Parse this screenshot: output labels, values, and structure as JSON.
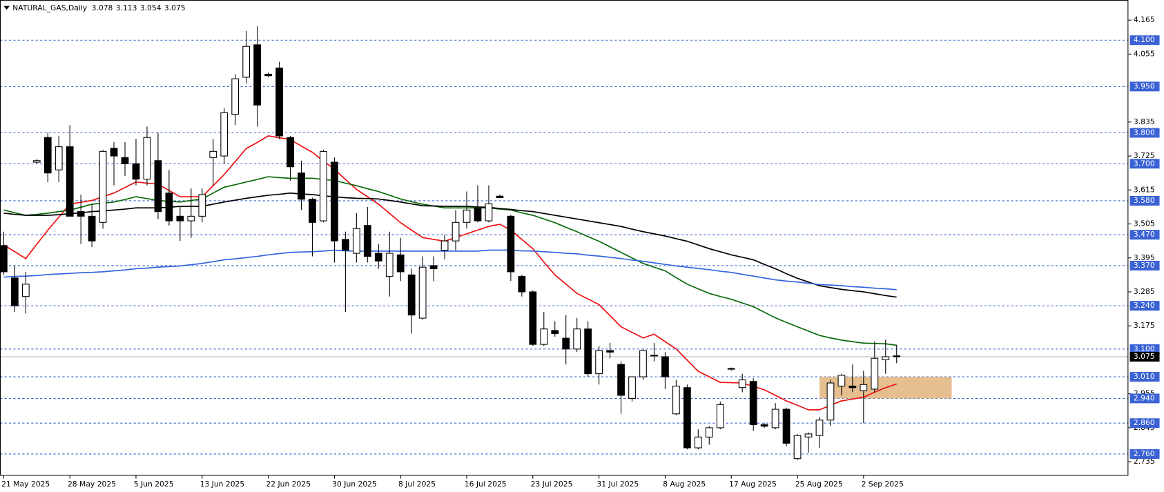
{
  "chart_data": {
    "type": "candlestick",
    "title": "NATURAL_GAS,Daily",
    "categories": [
      "21 May 2025",
      null,
      null,
      null,
      null,
      null,
      "28 May 2025",
      null,
      null,
      null,
      null,
      null,
      "5 Jun 2025",
      null,
      null,
      null,
      null,
      null,
      "13 Jun 2025",
      null,
      null,
      null,
      null,
      null,
      "22 Jun 2025",
      null,
      null,
      null,
      null,
      null,
      "30 Jun 2025",
      null,
      null,
      null,
      null,
      null,
      "8 Jul 2025",
      null,
      null,
      null,
      null,
      null,
      "16 Jul 2025",
      null,
      null,
      null,
      null,
      null,
      "23 Jul 2025",
      null,
      null,
      null,
      null,
      null,
      "31 Jul 2025",
      null,
      null,
      null,
      null,
      null,
      "8 Aug 2025",
      null,
      null,
      null,
      null,
      null,
      "17 Aug 2025",
      null,
      null,
      null,
      null,
      null,
      "25 Aug 2025",
      null,
      null,
      null,
      null,
      null,
      "2 Sep 2025",
      null,
      null,
      null
    ],
    "open": [
      3.435,
      3.33,
      3.27,
      3.705,
      3.785,
      3.68,
      3.755,
      3.545,
      3.53,
      3.51,
      3.75,
      3.72,
      3.7,
      3.65,
      3.71,
      3.605,
      3.53,
      3.515,
      3.53,
      3.72,
      3.725,
      3.86,
      3.98,
      4.085,
      3.99,
      4.01,
      3.785,
      3.67,
      3.585,
      3.515,
      3.705,
      3.455,
      3.41,
      3.5,
      3.41,
      3.335,
      3.405,
      3.34,
      3.2,
      3.37,
      3.42,
      3.45,
      3.51,
      3.555,
      3.515,
      3.595,
      3.53,
      3.335,
      3.285,
      3.115,
      3.16,
      3.135,
      3.1,
      3.165,
      3.02,
      3.095,
      3.05,
      2.94,
      3.01,
      3.08,
      3.075,
      2.89,
      2.975,
      2.78,
      2.815,
      2.845,
      3.035,
      2.975,
      2.995,
      2.855,
      2.845,
      2.905,
      2.745,
      2.815,
      2.82,
      2.87,
      2.98,
      2.98,
      2.965,
      2.97,
      3.065,
      3.078
    ],
    "high": [
      3.48,
      3.37,
      3.35,
      3.715,
      3.8,
      3.79,
      3.825,
      3.6,
      3.57,
      3.745,
      3.77,
      3.77,
      3.78,
      3.82,
      3.8,
      3.68,
      3.56,
      3.62,
      3.62,
      3.78,
      3.88,
      3.99,
      4.13,
      4.145,
      3.995,
      4.03,
      3.79,
      3.71,
      3.59,
      3.745,
      3.72,
      3.48,
      3.54,
      3.56,
      3.44,
      3.48,
      3.46,
      3.36,
      3.4,
      3.4,
      3.47,
      3.55,
      3.61,
      3.63,
      3.63,
      3.6,
      3.535,
      3.34,
      3.29,
      3.22,
      3.19,
      3.21,
      3.2,
      3.19,
      3.11,
      3.12,
      3.06,
      3.01,
      3.1,
      3.12,
      3.09,
      3.0,
      2.985,
      2.84,
      2.85,
      2.93,
      3.04,
      3.02,
      3.005,
      2.86,
      2.925,
      2.91,
      2.825,
      2.83,
      2.88,
      3.0,
      3.02,
      3.05,
      3.03,
      3.125,
      3.13,
      3.113
    ],
    "low": [
      3.34,
      3.22,
      3.215,
      3.7,
      3.64,
      3.64,
      3.53,
      3.44,
      3.43,
      3.49,
      3.63,
      3.66,
      3.63,
      3.63,
      3.52,
      3.5,
      3.45,
      3.46,
      3.51,
      3.63,
      3.7,
      3.825,
      3.96,
      3.82,
      3.98,
      3.78,
      3.645,
      3.55,
      3.4,
      3.51,
      3.38,
      3.22,
      3.38,
      3.38,
      3.36,
      3.27,
      3.32,
      3.15,
      3.195,
      3.32,
      3.39,
      3.42,
      3.49,
      3.51,
      3.51,
      3.59,
      3.32,
      3.27,
      3.11,
      3.11,
      3.14,
      3.05,
      3.09,
      3.01,
      2.985,
      3.07,
      2.89,
      2.93,
      3.0,
      3.06,
      2.97,
      2.885,
      2.775,
      2.775,
      2.79,
      2.84,
      3.03,
      2.96,
      2.835,
      2.845,
      2.84,
      2.785,
      2.74,
      2.765,
      2.78,
      2.85,
      2.95,
      2.96,
      2.86,
      2.96,
      3.02,
      3.054
    ],
    "close": [
      3.35,
      3.24,
      3.31,
      3.71,
      3.67,
      3.755,
      3.53,
      3.53,
      3.45,
      3.74,
      3.725,
      3.7,
      3.65,
      3.785,
      3.545,
      3.515,
      3.515,
      3.53,
      3.6,
      3.74,
      3.865,
      3.975,
      4.08,
      3.89,
      3.985,
      3.79,
      3.69,
      3.585,
      3.51,
      3.74,
      3.45,
      3.42,
      3.49,
      3.4,
      3.385,
      3.41,
      3.35,
      3.21,
      3.365,
      3.36,
      3.45,
      3.51,
      3.55,
      3.515,
      3.57,
      3.59,
      3.35,
      3.285,
      3.115,
      3.165,
      3.15,
      3.1,
      3.165,
      3.02,
      3.095,
      3.09,
      2.95,
      3.01,
      3.095,
      3.078,
      3.01,
      2.98,
      2.78,
      2.815,
      2.845,
      2.92,
      3.037,
      3.0,
      2.855,
      2.85,
      2.905,
      2.795,
      2.82,
      2.825,
      2.87,
      2.99,
      3.015,
      2.975,
      2.985,
      3.07,
      3.075,
      3.075
    ],
    "up_color": "#ffffff",
    "down_color": "#000000",
    "series": [
      {
        "color": "#ee1111",
        "values": [
          3.437,
          3.415,
          3.393,
          3.439,
          3.485,
          3.527,
          3.569,
          3.575,
          3.581,
          3.593,
          3.605,
          3.623,
          3.641,
          3.637,
          3.634,
          3.613,
          3.593,
          3.593,
          3.593,
          3.629,
          3.665,
          3.707,
          3.749,
          3.769,
          3.79,
          3.784,
          3.778,
          3.757,
          3.737,
          3.709,
          3.682,
          3.649,
          3.617,
          3.593,
          3.569,
          3.539,
          3.509,
          3.485,
          3.461,
          3.455,
          3.449,
          3.461,
          3.473,
          3.485,
          3.497,
          3.504,
          3.485,
          3.455,
          3.425,
          3.382,
          3.34,
          3.31,
          3.28,
          3.262,
          3.244,
          3.208,
          3.172,
          3.154,
          3.136,
          3.148,
          3.124,
          3.1,
          3.064,
          3.028,
          3.01,
          2.992,
          2.991,
          2.99,
          2.979,
          2.968,
          2.95,
          2.932,
          2.918,
          2.903,
          2.903,
          2.918,
          2.932,
          2.938,
          2.944,
          2.96,
          2.975,
          2.987
        ]
      },
      {
        "color": "#0b6b0b",
        "values": [
          3.55,
          3.541,
          3.533,
          3.536,
          3.54,
          3.545,
          3.55,
          3.559,
          3.569,
          3.572,
          3.576,
          3.584,
          3.593,
          3.587,
          3.581,
          3.578,
          3.576,
          3.581,
          3.586,
          3.605,
          3.624,
          3.632,
          3.641,
          3.649,
          3.658,
          3.655,
          3.653,
          3.653,
          3.653,
          3.649,
          3.646,
          3.637,
          3.629,
          3.619,
          3.61,
          3.598,
          3.586,
          3.577,
          3.569,
          3.563,
          3.557,
          3.557,
          3.557,
          3.557,
          3.557,
          3.553,
          3.55,
          3.541,
          3.533,
          3.521,
          3.509,
          3.494,
          3.48,
          3.464,
          3.449,
          3.431,
          3.413,
          3.395,
          3.377,
          3.365,
          3.353,
          3.331,
          3.31,
          3.295,
          3.28,
          3.27,
          3.261,
          3.249,
          3.237,
          3.219,
          3.201,
          3.186,
          3.172,
          3.158,
          3.144,
          3.136,
          3.129,
          3.124,
          3.119,
          3.118,
          3.117,
          3.112
        ]
      },
      {
        "color": "#000000",
        "values": [
          3.54,
          3.536,
          3.533,
          3.533,
          3.533,
          3.535,
          3.538,
          3.541,
          3.545,
          3.547,
          3.55,
          3.553,
          3.557,
          3.557,
          3.557,
          3.559,
          3.562,
          3.562,
          3.562,
          3.569,
          3.576,
          3.582,
          3.588,
          3.593,
          3.598,
          3.601,
          3.605,
          3.602,
          3.6,
          3.596,
          3.593,
          3.59,
          3.588,
          3.587,
          3.586,
          3.581,
          3.576,
          3.57,
          3.564,
          3.563,
          3.562,
          3.562,
          3.562,
          3.56,
          3.559,
          3.555,
          3.552,
          3.548,
          3.545,
          3.539,
          3.533,
          3.527,
          3.521,
          3.515,
          3.509,
          3.503,
          3.497,
          3.488,
          3.48,
          3.473,
          3.466,
          3.457,
          3.449,
          3.437,
          3.425,
          3.415,
          3.405,
          3.397,
          3.389,
          3.374,
          3.36,
          3.344,
          3.329,
          3.317,
          3.305,
          3.299,
          3.293,
          3.289,
          3.285,
          3.279,
          3.273,
          3.268
        ]
      },
      {
        "color": "#3366dd",
        "values": [
          3.333,
          3.335,
          3.336,
          3.338,
          3.341,
          3.343,
          3.345,
          3.347,
          3.348,
          3.35,
          3.353,
          3.356,
          3.36,
          3.362,
          3.365,
          3.367,
          3.369,
          3.373,
          3.377,
          3.383,
          3.389,
          3.392,
          3.396,
          3.4,
          3.405,
          3.409,
          3.413,
          3.414,
          3.415,
          3.417,
          3.42,
          3.418,
          3.417,
          3.417,
          3.417,
          3.417,
          3.417,
          3.417,
          3.417,
          3.417,
          3.417,
          3.417,
          3.417,
          3.417,
          3.42,
          3.42,
          3.42,
          3.418,
          3.417,
          3.415,
          3.413,
          3.41,
          3.408,
          3.404,
          3.401,
          3.397,
          3.393,
          3.388,
          3.384,
          3.379,
          3.374,
          3.369,
          3.365,
          3.361,
          3.357,
          3.352,
          3.348,
          3.342,
          3.336,
          3.33,
          3.324,
          3.32,
          3.317,
          3.313,
          3.309,
          3.307,
          3.305,
          3.302,
          3.3,
          3.297,
          3.295,
          3.292
        ]
      }
    ],
    "zone": {
      "low": 2.94,
      "high": 3.01,
      "color": "#e2b47c"
    },
    "ylim": [
      2.69,
      4.23
    ],
    "yticks": [
      4.165,
      4.055,
      3.835,
      3.725,
      3.615,
      3.505,
      3.395,
      3.285,
      3.175,
      2.955,
      2.845,
      2.735
    ],
    "levels": [
      {
        "value": 4.1,
        "label": "4.100"
      },
      {
        "value": 3.95,
        "label": "3.950"
      },
      {
        "value": 3.8,
        "label": "3.800"
      },
      {
        "value": 3.7,
        "label": "3.700"
      },
      {
        "value": 3.58,
        "label": "3.580"
      },
      {
        "value": 3.47,
        "label": "3.470"
      },
      {
        "value": 3.37,
        "label": "3.370"
      },
      {
        "value": 3.24,
        "label": "3.240"
      },
      {
        "value": 3.1,
        "label": "3.100"
      },
      {
        "value": 3.01,
        "label": "3.010"
      },
      {
        "value": 2.94,
        "label": "2.940"
      },
      {
        "value": 2.86,
        "label": "2.860"
      },
      {
        "value": 2.76,
        "label": "2.760"
      }
    ],
    "level_color": "#3a62d4"
  }
}
